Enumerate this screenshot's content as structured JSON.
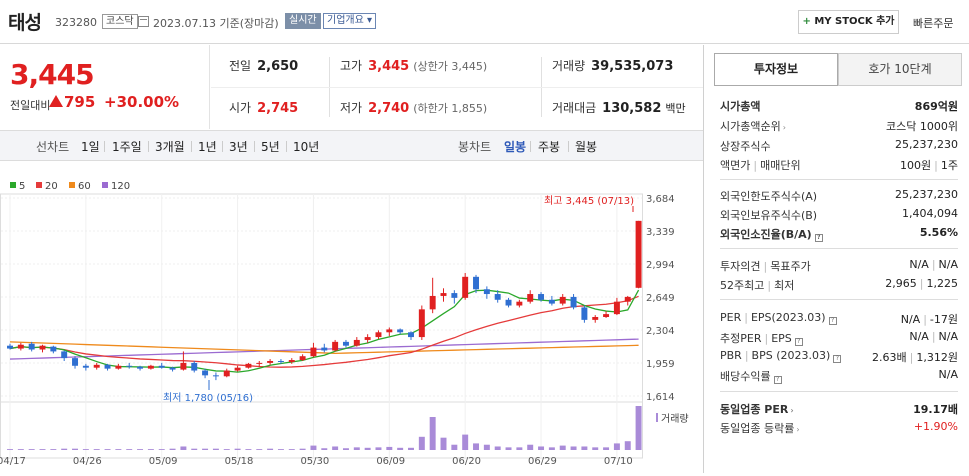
{
  "header": {
    "stock_name": "태성",
    "stock_code": "323280",
    "market": "코스닥",
    "date_text": "2023.07.13  기준(장마감)",
    "realtime_label": "실시간",
    "company_label": "기업개요 ▾",
    "mystock_plus": "+",
    "mystock_label": " MY STOCK 추가",
    "quick_order_label": "빠른주문"
  },
  "price": {
    "current": "3,445",
    "diff_label": "전일대비",
    "diff_value": "795",
    "diff_rate": "+30.00%"
  },
  "quote": {
    "prev_label": "전일",
    "prev_value": "2,650",
    "high_label": "고가",
    "high_value": "3,445",
    "high_sub": "(상한가 3,445)",
    "volume_label": "거래량",
    "volume_value": "39,535,073",
    "open_label": "시가",
    "open_value": "2,745",
    "low_label": "저가",
    "low_value": "2,740",
    "low_sub": "(하한가 1,855)",
    "amount_label": "거래대금",
    "amount_value": "130,582",
    "amount_unit": "백만"
  },
  "periods": {
    "line_label": "선차트",
    "line_items": [
      "1일",
      "1주일",
      "3개월",
      "1년",
      "3년",
      "5년",
      "10년"
    ],
    "candle_label": "봉차트",
    "candle_items": [
      "일봉",
      "주봉",
      "월봉"
    ],
    "active_candle": "일봉"
  },
  "colors": {
    "up": "#e02020",
    "down": "#2f6fd1",
    "ma5": "#2ba82b",
    "ma20": "#e53b3b",
    "ma60": "#ef8a1c",
    "ma120": "#9b6bd1",
    "volume": "#a98bd8"
  },
  "chart_data": {
    "type": "candlestick",
    "legend": [
      {
        "name": "5",
        "color": "#2ba82b"
      },
      {
        "name": "20",
        "color": "#e53b3b"
      },
      {
        "name": "60",
        "color": "#ef8a1c"
      },
      {
        "name": "120",
        "color": "#9b6bd1"
      }
    ],
    "y_ticks": [
      "3,684",
      "3,339",
      "2,994",
      "2,649",
      "2,304",
      "1,959",
      "1,614"
    ],
    "ylim": [
      1614,
      3684
    ],
    "x_ticks": [
      "04/17",
      "04/26",
      "05/09",
      "05/18",
      "05/30",
      "06/09",
      "06/20",
      "06/29",
      "07/10"
    ],
    "x_tick_index": [
      0,
      7,
      14,
      21,
      28,
      35,
      42,
      49,
      56
    ],
    "high_annotation": "최고 3,445 (07/13)",
    "low_annotation": "최저 1,780 (05/16)",
    "volume_label": "거래량",
    "candles": [
      [
        2140,
        2160,
        2100,
        2110
      ],
      [
        2110,
        2170,
        2090,
        2150
      ],
      [
        2160,
        2180,
        2080,
        2100
      ],
      [
        2100,
        2150,
        2070,
        2140
      ],
      [
        2130,
        2140,
        2060,
        2080
      ],
      [
        2080,
        2090,
        1980,
        2010
      ],
      [
        2010,
        2030,
        1900,
        1930
      ],
      [
        1930,
        1950,
        1880,
        1910
      ],
      [
        1910,
        1960,
        1890,
        1940
      ],
      [
        1940,
        1950,
        1880,
        1900
      ],
      [
        1900,
        1950,
        1890,
        1930
      ],
      [
        1930,
        1960,
        1900,
        1920
      ],
      [
        1920,
        1930,
        1880,
        1900
      ],
      [
        1900,
        1940,
        1890,
        1930
      ],
      [
        1930,
        1960,
        1900,
        1910
      ],
      [
        1910,
        1920,
        1870,
        1890
      ],
      [
        1890,
        2080,
        1880,
        1960
      ],
      [
        1960,
        1980,
        1860,
        1880
      ],
      [
        1880,
        1900,
        1800,
        1830
      ],
      [
        1830,
        1860,
        1780,
        1820
      ],
      [
        1820,
        1900,
        1810,
        1880
      ],
      [
        1880,
        1930,
        1870,
        1910
      ],
      [
        1910,
        1960,
        1900,
        1950
      ],
      [
        1950,
        1980,
        1920,
        1960
      ],
      [
        1960,
        2000,
        1940,
        1980
      ],
      [
        1980,
        2000,
        1950,
        1970
      ],
      [
        1970,
        2010,
        1950,
        1990
      ],
      [
        1990,
        2050,
        1980,
        2030
      ],
      [
        2030,
        2170,
        2020,
        2120
      ],
      [
        2120,
        2160,
        2070,
        2090
      ],
      [
        2090,
        2200,
        2080,
        2180
      ],
      [
        2180,
        2200,
        2120,
        2140
      ],
      [
        2140,
        2230,
        2130,
        2200
      ],
      [
        2200,
        2260,
        2170,
        2230
      ],
      [
        2230,
        2300,
        2210,
        2280
      ],
      [
        2280,
        2330,
        2240,
        2310
      ],
      [
        2310,
        2320,
        2260,
        2280
      ],
      [
        2280,
        2290,
        2200,
        2230
      ],
      [
        2230,
        2560,
        2200,
        2520
      ],
      [
        2520,
        2850,
        2480,
        2660
      ],
      [
        2660,
        2740,
        2600,
        2690
      ],
      [
        2690,
        2720,
        2580,
        2640
      ],
      [
        2640,
        2900,
        2620,
        2860
      ],
      [
        2860,
        2880,
        2690,
        2730
      ],
      [
        2730,
        2760,
        2630,
        2680
      ],
      [
        2680,
        2720,
        2590,
        2620
      ],
      [
        2620,
        2640,
        2540,
        2560
      ],
      [
        2560,
        2620,
        2540,
        2600
      ],
      [
        2600,
        2720,
        2580,
        2680
      ],
      [
        2680,
        2700,
        2600,
        2620
      ],
      [
        2620,
        2660,
        2560,
        2580
      ],
      [
        2580,
        2680,
        2560,
        2650
      ],
      [
        2650,
        2680,
        2520,
        2540
      ],
      [
        2540,
        2560,
        2380,
        2410
      ],
      [
        2410,
        2460,
        2380,
        2440
      ],
      [
        2440,
        2500,
        2430,
        2470
      ],
      [
        2470,
        2640,
        2460,
        2600
      ],
      [
        2600,
        2660,
        2560,
        2650
      ],
      [
        2745,
        3445,
        2740,
        3445
      ]
    ],
    "volumes": [
      0.02,
      0.02,
      0.02,
      0.02,
      0.02,
      0.03,
      0.03,
      0.02,
      0.02,
      0.02,
      0.02,
      0.02,
      0.02,
      0.02,
      0.02,
      0.03,
      0.08,
      0.03,
      0.03,
      0.03,
      0.02,
      0.03,
      0.02,
      0.02,
      0.03,
      0.02,
      0.02,
      0.03,
      0.1,
      0.04,
      0.08,
      0.04,
      0.06,
      0.05,
      0.06,
      0.07,
      0.05,
      0.05,
      0.3,
      0.75,
      0.28,
      0.12,
      0.35,
      0.15,
      0.12,
      0.08,
      0.06,
      0.06,
      0.12,
      0.08,
      0.06,
      0.1,
      0.08,
      0.08,
      0.06,
      0.06,
      0.15,
      0.2,
      1.0
    ]
  },
  "side": {
    "tab_invest": "투자정보",
    "tab_hoga": "호가 10단계",
    "market_cap_label": "시가총액",
    "market_cap_value": "869억원",
    "market_cap_rank_label": "시가총액순위",
    "market_cap_rank_value": "코스닥 1000위",
    "shares_label": "상장주식수",
    "shares_value": "25,237,230",
    "par_label": "액면가",
    "unit_label": "매매단위",
    "par_value": "100원",
    "unit_value": "1주",
    "foreign_limit_label": "외국인한도주식수(A)",
    "foreign_limit_value": "25,237,230",
    "foreign_hold_label": "외국인보유주식수(B)",
    "foreign_hold_value": "1,404,094",
    "foreign_rate_label": "외국인소진율(B/A)",
    "foreign_rate_value": "5.56%",
    "opinion_label": "투자의견",
    "target_label": "목표주가",
    "opinion_value": "N/A",
    "target_value": "N/A",
    "week52_high_label": "52주최고",
    "week52_low_label": "최저",
    "week52_high_value": "2,965",
    "week52_low_value": "1,225",
    "per_label": "PER",
    "eps_label": "EPS(2023.03)",
    "per_value": "N/A",
    "eps_value": "-17원",
    "est_per_label": "추정PER",
    "est_eps_label": "EPS",
    "est_per_value": "N/A",
    "est_eps_value": "N/A",
    "pbr_label": "PBR",
    "bps_label": "BPS (2023.03)",
    "pbr_value": "2.63배",
    "bps_value": "1,312원",
    "dividend_label": "배당수익률",
    "dividend_value": "N/A",
    "industry_per_label": "동일업종 PER",
    "industry_per_value": "19.17배",
    "industry_rate_label": "동일업종 등락률",
    "industry_rate_value": "+1.90%"
  }
}
